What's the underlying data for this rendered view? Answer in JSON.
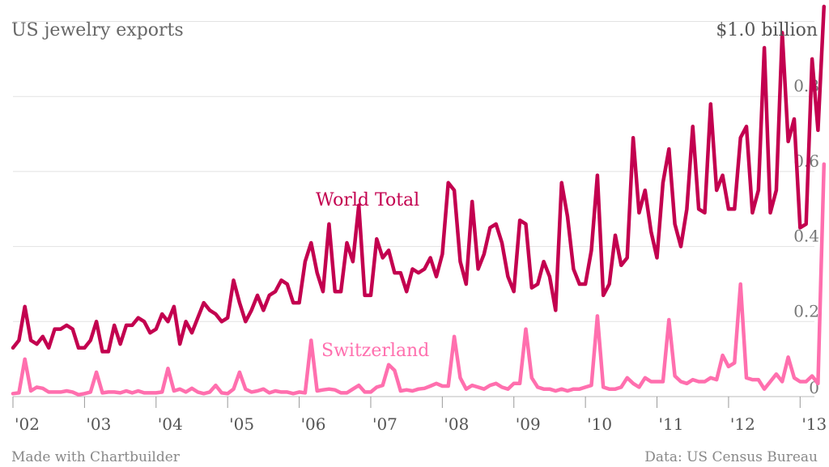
{
  "chart_data": {
    "type": "line",
    "title": "US jewelry exports",
    "corner_label": "$1.0 billion",
    "source": "Data: US Census Bureau",
    "credit": "Made with Chartbuilder",
    "xlim": [
      2002,
      2013.2
    ],
    "ylim": [
      0,
      1.04
    ],
    "y_ticks": [
      0.2,
      0.4,
      0.6,
      0.8
    ],
    "y_tick_labels": [
      "0.2",
      "0.4",
      "0.6",
      "0.8"
    ],
    "x_tick_labels": [
      "'02",
      "'03",
      "'04",
      "'05",
      "'06",
      "'07",
      "'08",
      "'09",
      "'10",
      "'11",
      "'12",
      "'13"
    ],
    "grid": true,
    "series": [
      {
        "name": "World Total",
        "color": "#c3004f",
        "values": [
          0.13,
          0.15,
          0.24,
          0.15,
          0.14,
          0.16,
          0.13,
          0.18,
          0.18,
          0.19,
          0.18,
          0.13,
          0.13,
          0.15,
          0.2,
          0.12,
          0.12,
          0.19,
          0.14,
          0.19,
          0.19,
          0.21,
          0.2,
          0.17,
          0.18,
          0.22,
          0.2,
          0.24,
          0.14,
          0.2,
          0.17,
          0.21,
          0.25,
          0.23,
          0.22,
          0.2,
          0.21,
          0.31,
          0.25,
          0.2,
          0.23,
          0.27,
          0.23,
          0.27,
          0.28,
          0.31,
          0.3,
          0.25,
          0.25,
          0.36,
          0.41,
          0.33,
          0.28,
          0.46,
          0.28,
          0.28,
          0.41,
          0.36,
          0.51,
          0.27,
          0.27,
          0.42,
          0.37,
          0.39,
          0.33,
          0.33,
          0.28,
          0.34,
          0.33,
          0.34,
          0.37,
          0.32,
          0.38,
          0.57,
          0.55,
          0.36,
          0.3,
          0.52,
          0.34,
          0.38,
          0.45,
          0.46,
          0.41,
          0.32,
          0.28,
          0.47,
          0.46,
          0.29,
          0.3,
          0.36,
          0.32,
          0.23,
          0.57,
          0.48,
          0.34,
          0.3,
          0.3,
          0.39,
          0.59,
          0.27,
          0.3,
          0.43,
          0.35,
          0.37,
          0.69,
          0.49,
          0.55,
          0.44,
          0.37,
          0.57,
          0.66,
          0.46,
          0.4,
          0.5,
          0.72,
          0.5,
          0.49,
          0.78,
          0.55,
          0.59,
          0.5,
          0.5,
          0.69,
          0.72,
          0.49,
          0.55,
          0.93,
          0.49,
          0.55,
          0.97,
          0.68,
          0.74,
          0.45,
          0.46,
          0.9,
          0.71,
          1.04
        ]
      },
      {
        "name": "Switzerland",
        "color": "#ff6fae",
        "values": [
          0.008,
          0.01,
          0.1,
          0.015,
          0.025,
          0.022,
          0.012,
          0.012,
          0.012,
          0.015,
          0.012,
          0.005,
          0.008,
          0.012,
          0.065,
          0.01,
          0.012,
          0.012,
          0.01,
          0.015,
          0.01,
          0.015,
          0.01,
          0.01,
          0.01,
          0.012,
          0.075,
          0.015,
          0.02,
          0.012,
          0.022,
          0.012,
          0.008,
          0.012,
          0.03,
          0.01,
          0.008,
          0.02,
          0.065,
          0.02,
          0.012,
          0.015,
          0.02,
          0.01,
          0.015,
          0.012,
          0.012,
          0.008,
          0.012,
          0.01,
          0.15,
          0.015,
          0.018,
          0.02,
          0.018,
          0.01,
          0.01,
          0.02,
          0.03,
          0.012,
          0.012,
          0.025,
          0.03,
          0.085,
          0.07,
          0.015,
          0.018,
          0.015,
          0.02,
          0.022,
          0.028,
          0.035,
          0.028,
          0.028,
          0.16,
          0.05,
          0.02,
          0.03,
          0.025,
          0.02,
          0.03,
          0.035,
          0.025,
          0.02,
          0.035,
          0.035,
          0.18,
          0.05,
          0.025,
          0.02,
          0.02,
          0.015,
          0.02,
          0.015,
          0.02,
          0.02,
          0.025,
          0.03,
          0.215,
          0.025,
          0.02,
          0.02,
          0.025,
          0.05,
          0.035,
          0.025,
          0.05,
          0.04,
          0.04,
          0.04,
          0.205,
          0.055,
          0.04,
          0.035,
          0.045,
          0.04,
          0.04,
          0.05,
          0.045,
          0.11,
          0.08,
          0.09,
          0.3,
          0.05,
          0.045,
          0.045,
          0.02,
          0.04,
          0.06,
          0.04,
          0.105,
          0.05,
          0.04,
          0.04,
          0.055,
          0.035,
          0.62
        ]
      }
    ]
  }
}
